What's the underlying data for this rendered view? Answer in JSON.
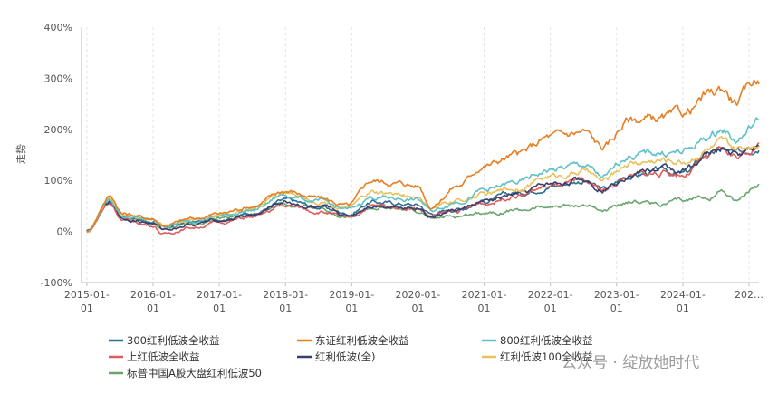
{
  "chart_data": {
    "type": "line",
    "ylabel": "走势",
    "y_tick_labels": [
      "400%",
      "300%",
      "200%",
      "100%",
      "0%",
      "-100%"
    ],
    "ylim": [
      -100,
      400
    ],
    "x_tick_labels": [
      [
        "2015-01-",
        "01"
      ],
      [
        "2016-01-",
        "01"
      ],
      [
        "2017-01-",
        "01"
      ],
      [
        "2018-01-",
        "01"
      ],
      [
        "2019-01-",
        "01"
      ],
      [
        "2020-01-",
        "01"
      ],
      [
        "2021-01-",
        "01"
      ],
      [
        "2022-01-",
        "01"
      ],
      [
        "2023-01-",
        "01"
      ],
      [
        "2024-01-",
        "01"
      ],
      [
        "202…",
        ""
      ]
    ],
    "series": [
      {
        "name": "300红利低波全收益",
        "color": "#2c6f8f",
        "anchors": [
          [
            2015.0,
            0
          ],
          [
            2015.35,
            60
          ],
          [
            2015.55,
            28
          ],
          [
            2016.0,
            20
          ],
          [
            2016.15,
            8
          ],
          [
            2016.6,
            18
          ],
          [
            2017.0,
            25
          ],
          [
            2017.5,
            35
          ],
          [
            2018.0,
            60
          ],
          [
            2018.5,
            48
          ],
          [
            2018.95,
            35
          ],
          [
            2019.3,
            58
          ],
          [
            2019.7,
            55
          ],
          [
            2020.0,
            52
          ],
          [
            2020.2,
            35
          ],
          [
            2020.6,
            45
          ],
          [
            2021.0,
            60
          ],
          [
            2021.5,
            75
          ],
          [
            2022.0,
            90
          ],
          [
            2022.5,
            100
          ],
          [
            2022.8,
            82
          ],
          [
            2023.2,
            110
          ],
          [
            2023.7,
            118
          ],
          [
            2024.0,
            112
          ],
          [
            2024.4,
            150
          ],
          [
            2024.6,
            160
          ],
          [
            2024.8,
            150
          ],
          [
            2025.15,
            170
          ]
        ]
      },
      {
        "name": "东证红利低波全收益",
        "color": "#e67e22",
        "anchors": [
          [
            2015.0,
            0
          ],
          [
            2015.35,
            70
          ],
          [
            2015.55,
            35
          ],
          [
            2016.0,
            25
          ],
          [
            2016.15,
            12
          ],
          [
            2016.6,
            25
          ],
          [
            2017.0,
            35
          ],
          [
            2017.5,
            50
          ],
          [
            2018.0,
            80
          ],
          [
            2018.5,
            65
          ],
          [
            2018.95,
            50
          ],
          [
            2019.3,
            100
          ],
          [
            2019.7,
            95
          ],
          [
            2020.0,
            90
          ],
          [
            2020.2,
            50
          ],
          [
            2020.6,
            90
          ],
          [
            2021.0,
            130
          ],
          [
            2021.5,
            150
          ],
          [
            2022.0,
            185
          ],
          [
            2022.5,
            195
          ],
          [
            2022.8,
            165
          ],
          [
            2023.2,
            220
          ],
          [
            2023.7,
            220
          ],
          [
            2024.0,
            230
          ],
          [
            2024.4,
            265
          ],
          [
            2024.6,
            280
          ],
          [
            2024.8,
            255
          ],
          [
            2025.15,
            300
          ]
        ]
      },
      {
        "name": "800红利低波全收益",
        "color": "#5fc1c7",
        "anchors": [
          [
            2015.0,
            0
          ],
          [
            2015.35,
            62
          ],
          [
            2015.55,
            30
          ],
          [
            2016.0,
            22
          ],
          [
            2016.15,
            10
          ],
          [
            2016.6,
            22
          ],
          [
            2017.0,
            30
          ],
          [
            2017.5,
            42
          ],
          [
            2018.0,
            72
          ],
          [
            2018.5,
            58
          ],
          [
            2018.95,
            42
          ],
          [
            2019.3,
            68
          ],
          [
            2019.7,
            65
          ],
          [
            2020.0,
            62
          ],
          [
            2020.2,
            40
          ],
          [
            2020.6,
            60
          ],
          [
            2021.0,
            80
          ],
          [
            2021.5,
            95
          ],
          [
            2022.0,
            120
          ],
          [
            2022.5,
            130
          ],
          [
            2022.8,
            105
          ],
          [
            2023.2,
            150
          ],
          [
            2023.7,
            155
          ],
          [
            2024.0,
            155
          ],
          [
            2024.4,
            185
          ],
          [
            2024.6,
            200
          ],
          [
            2024.8,
            180
          ],
          [
            2025.15,
            215
          ]
        ]
      },
      {
        "name": "上红低波全收益",
        "color": "#e05b5b",
        "anchors": [
          [
            2015.0,
            0
          ],
          [
            2015.35,
            55
          ],
          [
            2015.55,
            22
          ],
          [
            2016.0,
            12
          ],
          [
            2016.15,
            -5
          ],
          [
            2016.6,
            8
          ],
          [
            2017.0,
            18
          ],
          [
            2017.5,
            28
          ],
          [
            2018.0,
            50
          ],
          [
            2018.5,
            40
          ],
          [
            2018.95,
            25
          ],
          [
            2019.3,
            50
          ],
          [
            2019.7,
            48
          ],
          [
            2020.0,
            45
          ],
          [
            2020.2,
            30
          ],
          [
            2020.6,
            40
          ],
          [
            2021.0,
            55
          ],
          [
            2021.5,
            72
          ],
          [
            2022.0,
            88
          ],
          [
            2022.5,
            95
          ],
          [
            2022.8,
            82
          ],
          [
            2023.2,
            108
          ],
          [
            2023.7,
            115
          ],
          [
            2024.0,
            112
          ],
          [
            2024.4,
            145
          ],
          [
            2024.6,
            158
          ],
          [
            2024.8,
            148
          ],
          [
            2025.15,
            168
          ]
        ]
      },
      {
        "name": "红利低波(全)",
        "color": "#3a3f6b",
        "anchors": [
          [
            2015.0,
            0
          ],
          [
            2015.35,
            58
          ],
          [
            2015.55,
            26
          ],
          [
            2016.0,
            16
          ],
          [
            2016.15,
            4
          ],
          [
            2016.6,
            14
          ],
          [
            2017.0,
            22
          ],
          [
            2017.5,
            32
          ],
          [
            2018.0,
            58
          ],
          [
            2018.5,
            45
          ],
          [
            2018.95,
            30
          ],
          [
            2019.3,
            52
          ],
          [
            2019.7,
            50
          ],
          [
            2020.0,
            48
          ],
          [
            2020.2,
            30
          ],
          [
            2020.6,
            42
          ],
          [
            2021.0,
            58
          ],
          [
            2021.5,
            72
          ],
          [
            2022.0,
            92
          ],
          [
            2022.5,
            102
          ],
          [
            2022.8,
            85
          ],
          [
            2023.2,
            115
          ],
          [
            2023.7,
            122
          ],
          [
            2024.0,
            118
          ],
          [
            2024.4,
            152
          ],
          [
            2024.6,
            162
          ],
          [
            2024.8,
            150
          ],
          [
            2025.15,
            170
          ]
        ]
      },
      {
        "name": "红利低波100全收益",
        "color": "#e8c15a",
        "anchors": [
          [
            2015.0,
            0
          ],
          [
            2015.35,
            65
          ],
          [
            2015.55,
            32
          ],
          [
            2016.0,
            24
          ],
          [
            2016.15,
            12
          ],
          [
            2016.6,
            24
          ],
          [
            2017.0,
            32
          ],
          [
            2017.5,
            45
          ],
          [
            2018.0,
            78
          ],
          [
            2018.5,
            60
          ],
          [
            2018.95,
            45
          ],
          [
            2019.3,
            75
          ],
          [
            2019.7,
            72
          ],
          [
            2020.0,
            68
          ],
          [
            2020.2,
            45
          ],
          [
            2020.6,
            60
          ],
          [
            2021.0,
            72
          ],
          [
            2021.5,
            85
          ],
          [
            2022.0,
            108
          ],
          [
            2022.5,
            118
          ],
          [
            2022.8,
            98
          ],
          [
            2023.2,
            135
          ],
          [
            2023.7,
            140
          ],
          [
            2024.0,
            138
          ],
          [
            2024.4,
            162
          ],
          [
            2024.6,
            170
          ],
          [
            2024.8,
            158
          ],
          [
            2025.15,
            175
          ]
        ]
      },
      {
        "name": "标普中国A股大盘红利低波50",
        "color": "#6aa56e",
        "anchors": [
          [
            2015.0,
            0
          ],
          [
            2015.35,
            55
          ],
          [
            2015.55,
            25
          ],
          [
            2016.0,
            15
          ],
          [
            2016.15,
            5
          ],
          [
            2016.6,
            15
          ],
          [
            2017.0,
            25
          ],
          [
            2017.5,
            35
          ],
          [
            2018.0,
            55
          ],
          [
            2018.5,
            45
          ],
          [
            2018.95,
            30
          ],
          [
            2019.3,
            45
          ],
          [
            2019.7,
            42
          ],
          [
            2020.0,
            40
          ],
          [
            2020.2,
            25
          ],
          [
            2020.6,
            30
          ],
          [
            2021.0,
            38
          ],
          [
            2021.5,
            42
          ],
          [
            2022.0,
            48
          ],
          [
            2022.5,
            52
          ],
          [
            2022.8,
            40
          ],
          [
            2023.2,
            60
          ],
          [
            2023.7,
            55
          ],
          [
            2024.0,
            58
          ],
          [
            2024.4,
            70
          ],
          [
            2024.6,
            80
          ],
          [
            2024.8,
            62
          ],
          [
            2025.15,
            88
          ]
        ]
      }
    ],
    "x_range": [
      2014.92,
      2025.15
    ],
    "legend_position": "bottom",
    "grid": "vertical dashed"
  },
  "watermark": "公众号 · 绽放她时代"
}
